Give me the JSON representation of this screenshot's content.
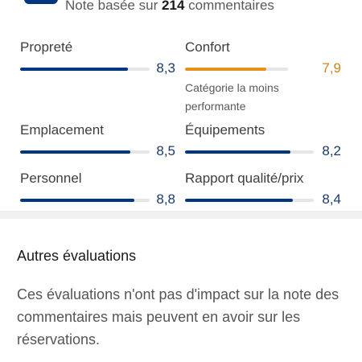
{
  "header": {
    "review_prefix": "Note basée sur",
    "review_count": "214",
    "review_suffix": "commentaires"
  },
  "ratings": {
    "items": [
      {
        "label": "Propreté",
        "value": "8,3",
        "score": 8.3
      },
      {
        "label": "Confort",
        "value": "7,9",
        "score": 7.9,
        "note": "Catégorie la moins performante"
      },
      {
        "label": "Emplacement",
        "value": "8,5",
        "score": 8.5
      },
      {
        "label": "Équipements",
        "value": "8,2",
        "score": 8.2
      },
      {
        "label": "Personnel",
        "value": "8,8",
        "score": 8.8
      },
      {
        "label": "Rapport qualité/prix",
        "value": "8,4",
        "score": 8.4
      }
    ],
    "max_score": 10,
    "colors": {
      "bar": "#003580",
      "weak_bar": "#e8911a",
      "track": "#e6e6e6"
    }
  },
  "other_evaluations": {
    "title": "Autres évaluations",
    "description": "Ces évaluations n'ont pas d'impact sur la note des commentaires mais peuvent en avoir sur les réservations."
  }
}
